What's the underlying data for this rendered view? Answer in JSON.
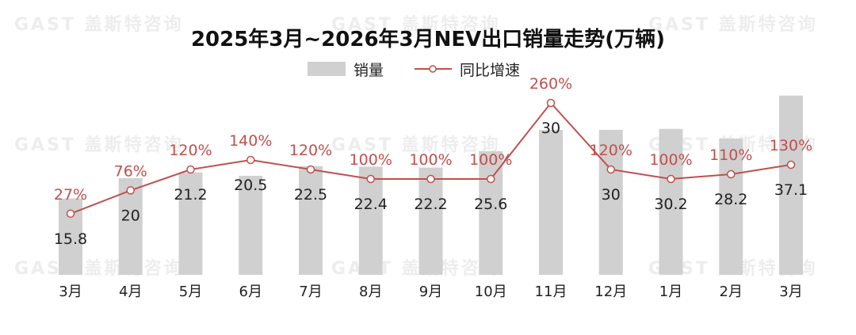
{
  "watermark": "GAST 盖斯特咨询",
  "chart_data": {
    "type": "bar",
    "title": "2025年3月~2026年3月NEV出口销量走势(万辆)",
    "categories": [
      "3月",
      "4月",
      "5月",
      "6月",
      "7月",
      "8月",
      "9月",
      "10月",
      "11月",
      "12月",
      "1月",
      "2月",
      "3月"
    ],
    "series": [
      {
        "name": "销量",
        "type": "bar",
        "values": [
          15.8,
          20,
          21.2,
          20.5,
          22.5,
          22.4,
          22.2,
          25.6,
          30,
          30,
          30.2,
          28.2,
          37.1
        ],
        "color": "#d0d0d0"
      },
      {
        "name": "同比增速",
        "type": "line",
        "values": [
          27,
          76,
          120,
          140,
          120,
          100,
          100,
          100,
          260,
          120,
          100,
          110,
          130
        ],
        "labels": [
          "27%",
          "76%",
          "120%",
          "140%",
          "120%",
          "100%",
          "100%",
          "100%",
          "260%",
          "120%",
          "100%",
          "110%",
          "130%"
        ],
        "color": "#c0504d"
      }
    ],
    "legend": "top-center",
    "grid": false
  }
}
